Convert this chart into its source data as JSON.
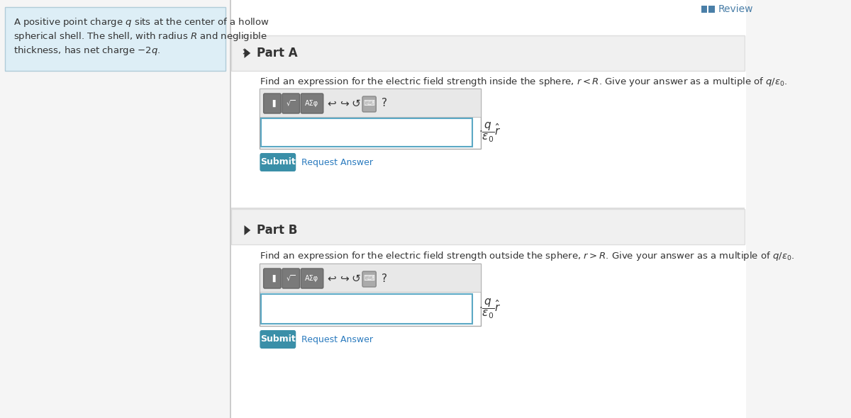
{
  "bg_color": "#f5f5f5",
  "white": "#ffffff",
  "light_blue_bg": "#ddeef6",
  "teal_btn": "#3a8fa8",
  "border_color": "#cccccc",
  "input_border": "#5ba8c4",
  "text_dark": "#333333",
  "text_medium": "#555555",
  "link_color": "#2b7bbf",
  "review_bar_color": "#4a7fa8",
  "toolbar_bg": "#d0d0d0",
  "toolbar_btn_bg": "#8a8a8a",
  "review_text": "Review",
  "problem_text_line1": "A positive point charge $q$ sits at the center of a hollow",
  "problem_text_line2": "spherical shell. The shell, with radius $R$ and negligible",
  "problem_text_line3": "thickness, has net charge $-2q$.",
  "part_a_label": "Part A",
  "part_b_label": "Part B",
  "part_a_question": "Find an expression for the electric field strength inside the sphere, $r < R$. Give your answer as a multiple of $q/\\varepsilon_0$.",
  "part_b_question": "Find an expression for the electric field strength outside the sphere, $r > R$. Give your answer as a multiple of $q/\\varepsilon_0$.",
  "submit_text": "Submit",
  "request_answer_text": "Request Answer",
  "unit_label_a": "$\\cdot\\dfrac{q}{\\varepsilon_0}\\hat{r}$",
  "unit_label_b": "$\\cdot\\dfrac{q}{\\varepsilon_0}\\hat{r}$"
}
